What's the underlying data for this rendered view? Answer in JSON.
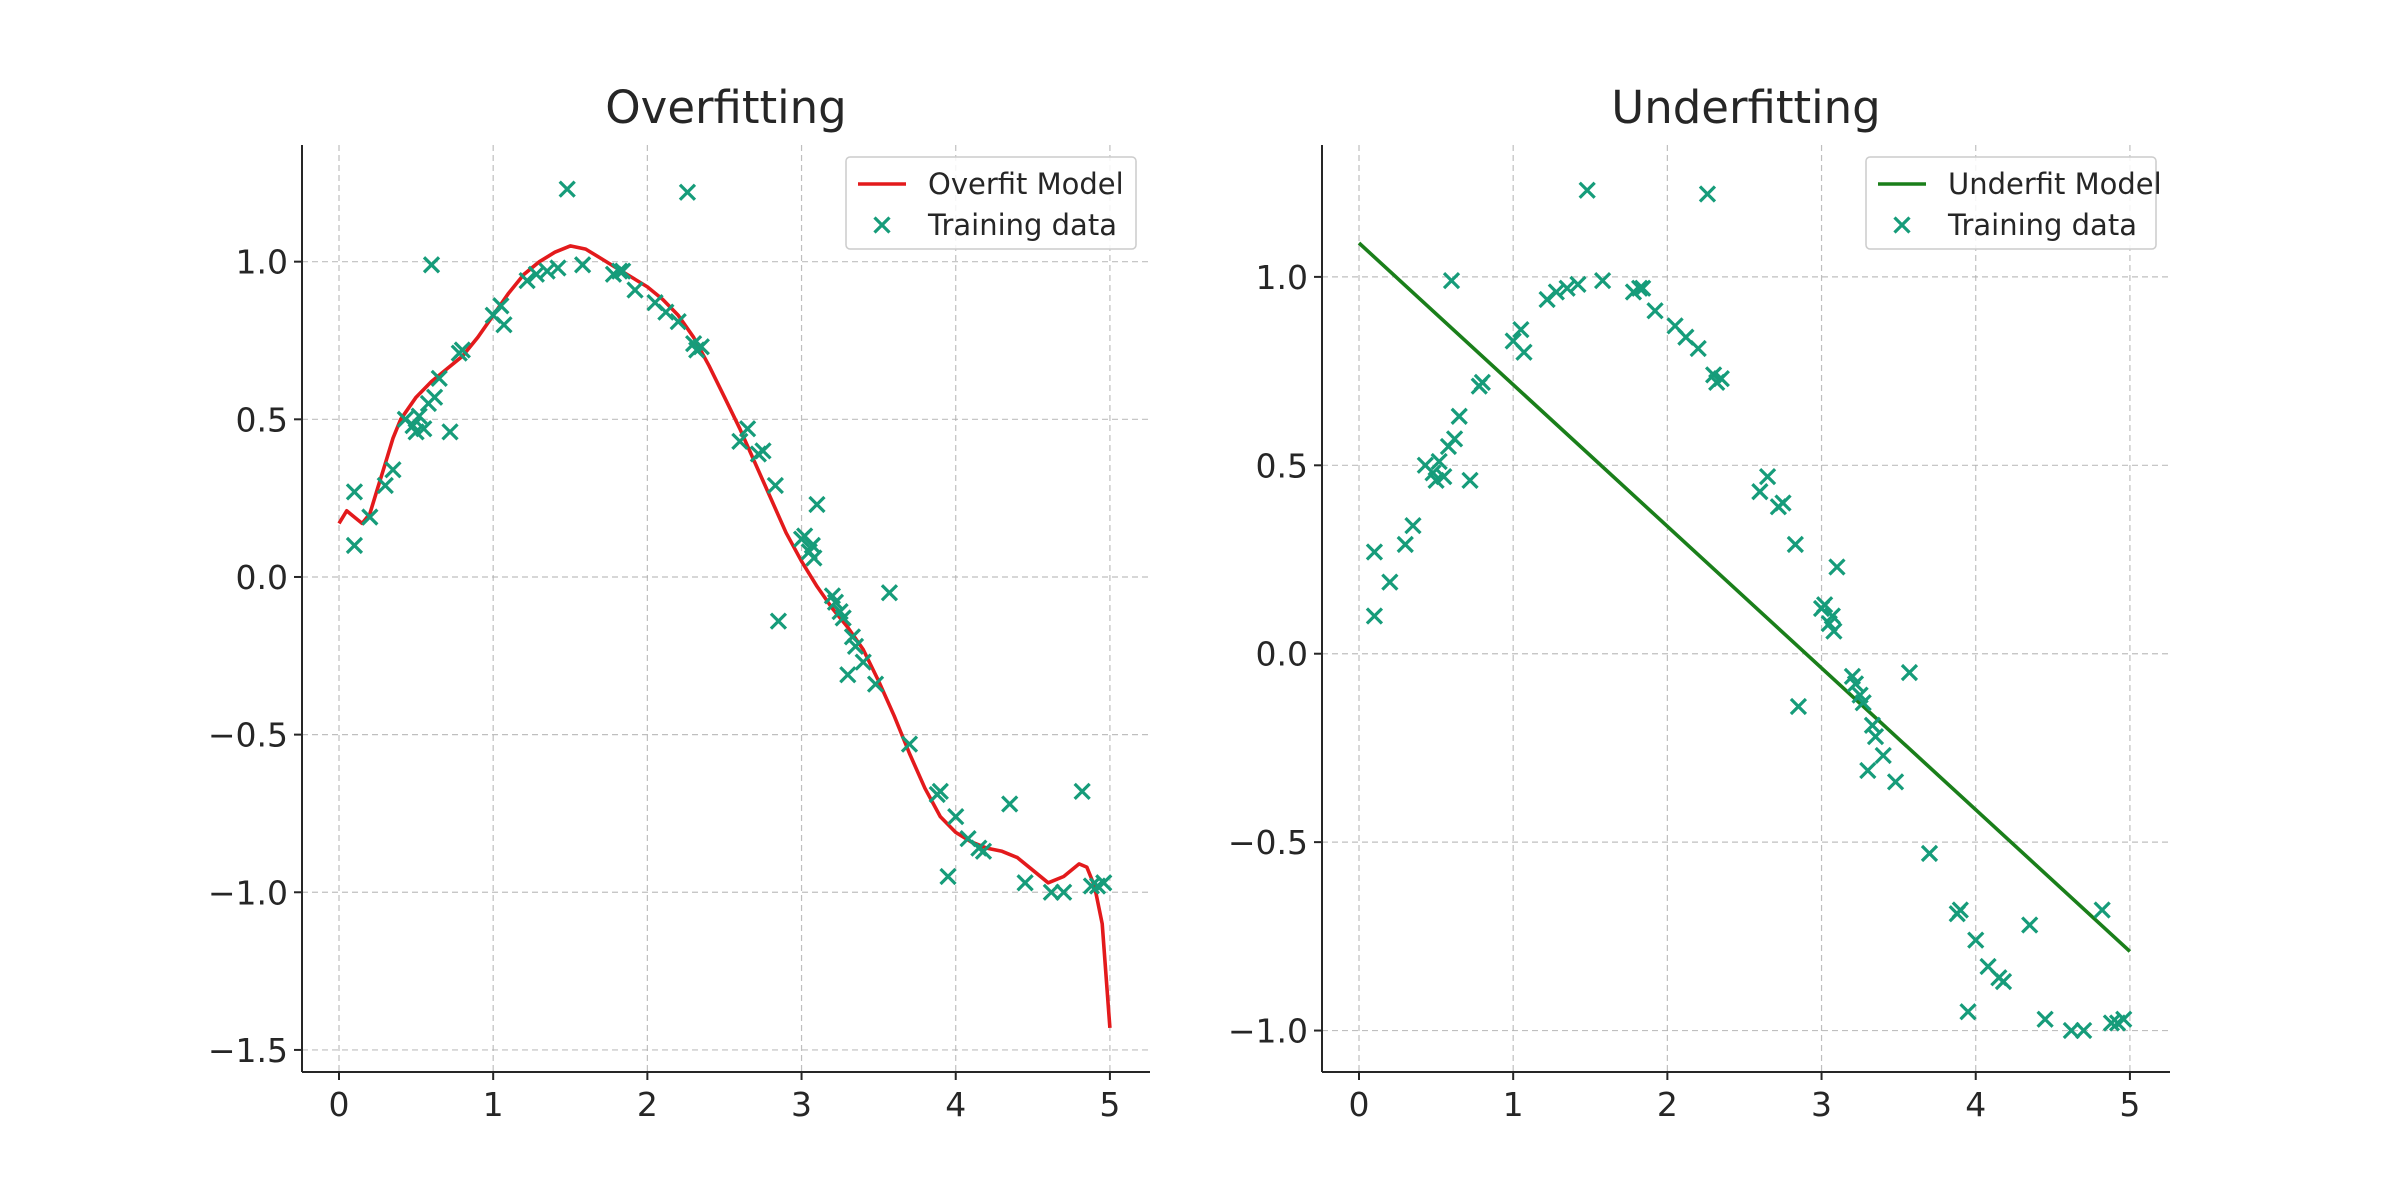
{
  "colors": {
    "overfit_line": "#e31a1c",
    "underfit_line": "#1a7f1a",
    "points": "#169c7a",
    "axis": "#262626",
    "grid": "#b0b0b0"
  },
  "chart_data": [
    {
      "type": "scatter",
      "title": "Overfitting",
      "xlabel": "",
      "ylabel": "",
      "xlim": [
        -0.24,
        5.26
      ],
      "ylim": [
        -1.57,
        1.37
      ],
      "xticks": [
        "0",
        "1",
        "2",
        "3",
        "4",
        "5"
      ],
      "yticks": [
        "−1.5",
        "−1.0",
        "−0.5",
        "0.0",
        "0.5",
        "1.0"
      ],
      "grid": true,
      "legend_position": "top-right",
      "legend": [
        "Overfit Model",
        "Training data"
      ],
      "series": [
        {
          "name": "Overfit Model",
          "kind": "line",
          "x": [
            0.0,
            0.05,
            0.1,
            0.15,
            0.2,
            0.25,
            0.3,
            0.35,
            0.4,
            0.5,
            0.6,
            0.7,
            0.8,
            0.9,
            1.0,
            1.1,
            1.2,
            1.3,
            1.4,
            1.5,
            1.6,
            1.7,
            1.8,
            1.9,
            2.0,
            2.1,
            2.2,
            2.3,
            2.4,
            2.5,
            2.6,
            2.7,
            2.8,
            2.9,
            3.0,
            3.1,
            3.2,
            3.3,
            3.4,
            3.5,
            3.6,
            3.7,
            3.8,
            3.9,
            4.0,
            4.1,
            4.2,
            4.3,
            4.4,
            4.5,
            4.6,
            4.7,
            4.8,
            4.85,
            4.9,
            4.95,
            5.0
          ],
          "y": [
            0.17,
            0.21,
            0.19,
            0.17,
            0.2,
            0.28,
            0.36,
            0.44,
            0.5,
            0.57,
            0.62,
            0.66,
            0.7,
            0.76,
            0.83,
            0.9,
            0.96,
            1.0,
            1.03,
            1.05,
            1.04,
            1.01,
            0.98,
            0.95,
            0.92,
            0.88,
            0.83,
            0.76,
            0.67,
            0.57,
            0.47,
            0.36,
            0.25,
            0.14,
            0.05,
            -0.03,
            -0.1,
            -0.16,
            -0.23,
            -0.33,
            -0.44,
            -0.56,
            -0.67,
            -0.76,
            -0.81,
            -0.84,
            -0.86,
            -0.87,
            -0.89,
            -0.93,
            -0.97,
            -0.95,
            -0.91,
            -0.92,
            -0.98,
            -1.1,
            -1.43
          ]
        },
        {
          "name": "Training data",
          "kind": "scatter",
          "x": [
            0.1,
            0.1,
            0.2,
            0.3,
            0.35,
            0.43,
            0.48,
            0.5,
            0.52,
            0.55,
            0.58,
            0.6,
            0.62,
            0.65,
            0.72,
            0.78,
            0.8,
            1.0,
            1.05,
            1.07,
            1.22,
            1.28,
            1.35,
            1.42,
            1.48,
            1.58,
            1.78,
            1.82,
            1.84,
            1.92,
            2.05,
            2.12,
            2.2,
            2.26,
            2.3,
            2.32,
            2.35,
            2.6,
            2.65,
            2.72,
            2.75,
            2.83,
            2.85,
            3.0,
            3.02,
            3.05,
            3.07,
            3.08,
            3.1,
            3.2,
            3.22,
            3.25,
            3.27,
            3.3,
            3.33,
            3.35,
            3.4,
            3.48,
            3.57,
            3.7,
            3.88,
            3.9,
            3.95,
            4.0,
            4.08,
            4.15,
            4.18,
            4.35,
            4.45,
            4.62,
            4.7,
            4.82,
            4.88,
            4.92,
            4.96
          ],
          "y": [
            0.27,
            0.1,
            0.19,
            0.29,
            0.34,
            0.5,
            0.48,
            0.46,
            0.51,
            0.47,
            0.55,
            0.99,
            0.57,
            0.63,
            0.46,
            0.71,
            0.72,
            0.83,
            0.86,
            0.8,
            0.94,
            0.96,
            0.97,
            0.98,
            1.23,
            0.99,
            0.96,
            0.97,
            0.97,
            0.91,
            0.87,
            0.84,
            0.81,
            1.22,
            0.74,
            0.72,
            0.73,
            0.43,
            0.47,
            0.39,
            0.4,
            0.29,
            -0.14,
            0.12,
            0.13,
            0.08,
            0.1,
            0.06,
            0.23,
            -0.06,
            -0.08,
            -0.11,
            -0.13,
            -0.31,
            -0.19,
            -0.22,
            -0.27,
            -0.34,
            -0.05,
            -0.53,
            -0.69,
            -0.68,
            -0.95,
            -0.76,
            -0.83,
            -0.86,
            -0.87,
            -0.72,
            -0.97,
            -1.0,
            -1.0,
            -0.68,
            -0.98,
            -0.98,
            -0.97
          ]
        }
      ]
    },
    {
      "type": "scatter",
      "title": "Underfitting",
      "xlabel": "",
      "ylabel": "",
      "xlim": [
        -0.24,
        5.26
      ],
      "ylim": [
        -1.11,
        1.35
      ],
      "xticks": [
        "0",
        "1",
        "2",
        "3",
        "4",
        "5"
      ],
      "yticks": [
        "−1.0",
        "−0.5",
        "0.0",
        "0.5",
        "1.0"
      ],
      "grid": true,
      "legend_position": "top-right",
      "legend": [
        "Underfit Model",
        "Training data"
      ],
      "series": [
        {
          "name": "Underfit Model",
          "kind": "line",
          "x": [
            0.0,
            5.0
          ],
          "y": [
            1.09,
            -0.79
          ]
        },
        {
          "name": "Training data",
          "kind": "scatter",
          "x": [
            0.1,
            0.1,
            0.2,
            0.3,
            0.35,
            0.43,
            0.48,
            0.5,
            0.52,
            0.55,
            0.58,
            0.6,
            0.62,
            0.65,
            0.72,
            0.78,
            0.8,
            1.0,
            1.05,
            1.07,
            1.22,
            1.28,
            1.35,
            1.42,
            1.48,
            1.58,
            1.78,
            1.82,
            1.84,
            1.92,
            2.05,
            2.12,
            2.2,
            2.26,
            2.3,
            2.32,
            2.35,
            2.6,
            2.65,
            2.72,
            2.75,
            2.83,
            2.85,
            3.0,
            3.02,
            3.05,
            3.07,
            3.08,
            3.1,
            3.2,
            3.22,
            3.25,
            3.27,
            3.3,
            3.33,
            3.35,
            3.4,
            3.48,
            3.57,
            3.7,
            3.88,
            3.9,
            3.95,
            4.0,
            4.08,
            4.15,
            4.18,
            4.35,
            4.45,
            4.62,
            4.7,
            4.82,
            4.88,
            4.92,
            4.96
          ],
          "y": [
            0.27,
            0.1,
            0.19,
            0.29,
            0.34,
            0.5,
            0.48,
            0.46,
            0.51,
            0.47,
            0.55,
            0.99,
            0.57,
            0.63,
            0.46,
            0.71,
            0.72,
            0.83,
            0.86,
            0.8,
            0.94,
            0.96,
            0.97,
            0.98,
            1.23,
            0.99,
            0.96,
            0.97,
            0.97,
            0.91,
            0.87,
            0.84,
            0.81,
            1.22,
            0.74,
            0.72,
            0.73,
            0.43,
            0.47,
            0.39,
            0.4,
            0.29,
            -0.14,
            0.12,
            0.13,
            0.08,
            0.1,
            0.06,
            0.23,
            -0.06,
            -0.08,
            -0.11,
            -0.13,
            -0.31,
            -0.19,
            -0.22,
            -0.27,
            -0.34,
            -0.05,
            -0.53,
            -0.69,
            -0.68,
            -0.95,
            -0.76,
            -0.83,
            -0.86,
            -0.87,
            -0.72,
            -0.97,
            -1.0,
            -1.0,
            -0.68,
            -0.98,
            -0.98,
            -0.97
          ]
        }
      ]
    }
  ]
}
